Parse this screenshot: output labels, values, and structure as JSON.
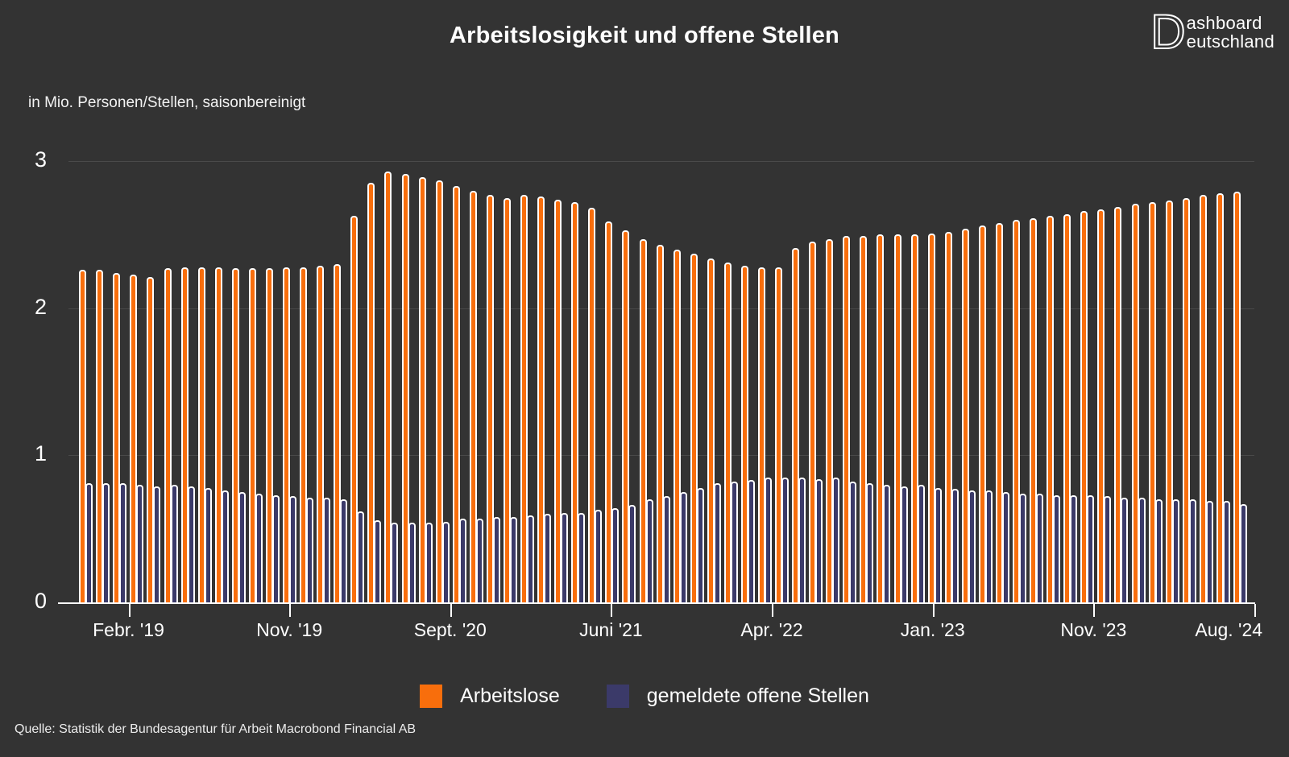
{
  "title": "Arbeitslosigkeit und offene Stellen",
  "subtitle": "in Mio. Personen/Stellen, saisonbereinigt",
  "logo": {
    "initial": "D",
    "line1": "ashboard",
    "line2": "eutschland"
  },
  "source": "Quelle: Statistik der Bundesagentur für Arbeit Macrobond Financial AB",
  "colors": {
    "background": "#333333",
    "unemployed": "#F86E0C",
    "vacancies": "#3B3A69",
    "text": "#FFFFFF",
    "gridline": "#4A4A4A"
  },
  "legend": {
    "items": [
      {
        "label": "Arbeitslose",
        "color": "#F86E0C"
      },
      {
        "label": "gemeldete offene Stellen",
        "color": "#3B3A69"
      }
    ]
  },
  "y_axis": {
    "ticks": [
      3,
      2,
      1,
      0
    ]
  },
  "x_axis": {
    "tick_labels": [
      "Febr. '19",
      "Nov. '19",
      "Sept. '20",
      "Juni '21",
      "Apr. '22",
      "Jan. '23",
      "Nov. '23",
      "Aug. '24"
    ]
  },
  "chart_data": {
    "type": "bar",
    "title": "Arbeitslosigkeit und offene Stellen",
    "ylabel": "in Mio. Personen/Stellen, saisonbereinigt",
    "ylim": [
      0,
      3
    ],
    "yticks": [
      0,
      1,
      2,
      3
    ],
    "gridlines": [
      1,
      2,
      3
    ],
    "legend_position": "bottom",
    "xtick_labels": [
      "Febr. '19",
      "Nov. '19",
      "Sept. '20",
      "Juni '21",
      "Apr. '22",
      "Jan. '23",
      "Nov. '23",
      "Aug. '24"
    ],
    "x": [
      "2018-12",
      "2019-01",
      "2019-02",
      "2019-03",
      "2019-04",
      "2019-05",
      "2019-06",
      "2019-07",
      "2019-08",
      "2019-09",
      "2019-10",
      "2019-11",
      "2019-12",
      "2020-01",
      "2020-02",
      "2020-03",
      "2020-04",
      "2020-05",
      "2020-06",
      "2020-07",
      "2020-08",
      "2020-09",
      "2020-10",
      "2020-11",
      "2020-12",
      "2021-01",
      "2021-02",
      "2021-03",
      "2021-04",
      "2021-05",
      "2021-06",
      "2021-07",
      "2021-08",
      "2021-09",
      "2021-10",
      "2021-11",
      "2021-12",
      "2022-01",
      "2022-02",
      "2022-03",
      "2022-04",
      "2022-05",
      "2022-06",
      "2022-07",
      "2022-08",
      "2022-09",
      "2022-10",
      "2022-11",
      "2022-12",
      "2023-01",
      "2023-02",
      "2023-03",
      "2023-04",
      "2023-05",
      "2023-06",
      "2023-07",
      "2023-08",
      "2023-09",
      "2023-10",
      "2023-11",
      "2023-12",
      "2024-01",
      "2024-02",
      "2024-03",
      "2024-04",
      "2024-05",
      "2024-06",
      "2024-07",
      "2024-08"
    ],
    "series": [
      {
        "name": "Arbeitslose",
        "color": "#F86E0C",
        "values": [
          2.26,
          2.26,
          2.24,
          2.23,
          2.21,
          2.27,
          2.28,
          2.28,
          2.28,
          2.27,
          2.27,
          2.27,
          2.28,
          2.28,
          2.29,
          2.3,
          2.63,
          2.85,
          2.93,
          2.91,
          2.89,
          2.87,
          2.83,
          2.8,
          2.77,
          2.75,
          2.77,
          2.76,
          2.74,
          2.72,
          2.68,
          2.59,
          2.53,
          2.47,
          2.43,
          2.4,
          2.37,
          2.34,
          2.31,
          2.29,
          2.28,
          2.28,
          2.41,
          2.45,
          2.47,
          2.49,
          2.49,
          2.5,
          2.5,
          2.5,
          2.51,
          2.52,
          2.54,
          2.56,
          2.58,
          2.6,
          2.61,
          2.63,
          2.64,
          2.66,
          2.67,
          2.69,
          2.71,
          2.72,
          2.73,
          2.75,
          2.77,
          2.78,
          2.79
        ]
      },
      {
        "name": "gemeldete offene Stellen",
        "color": "#3B3A69",
        "values": [
          0.81,
          0.81,
          0.81,
          0.8,
          0.79,
          0.8,
          0.79,
          0.78,
          0.76,
          0.75,
          0.74,
          0.73,
          0.72,
          0.71,
          0.71,
          0.7,
          0.62,
          0.56,
          0.54,
          0.54,
          0.54,
          0.55,
          0.57,
          0.57,
          0.58,
          0.58,
          0.59,
          0.6,
          0.61,
          0.61,
          0.63,
          0.64,
          0.66,
          0.7,
          0.72,
          0.75,
          0.78,
          0.81,
          0.82,
          0.83,
          0.85,
          0.85,
          0.85,
          0.84,
          0.85,
          0.82,
          0.81,
          0.8,
          0.79,
          0.8,
          0.78,
          0.77,
          0.76,
          0.76,
          0.75,
          0.74,
          0.74,
          0.73,
          0.73,
          0.73,
          0.72,
          0.71,
          0.71,
          0.7,
          0.7,
          0.7,
          0.69,
          0.69,
          0.67
        ]
      }
    ]
  }
}
